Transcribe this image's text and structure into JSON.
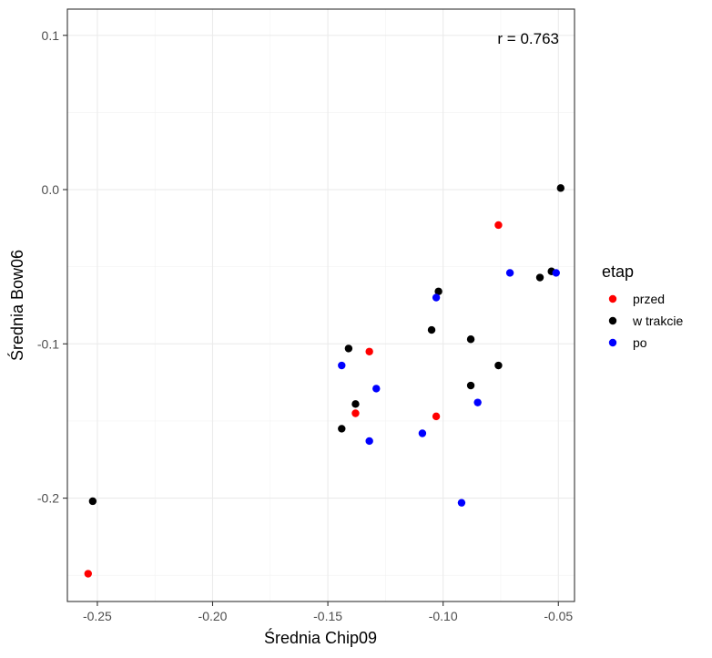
{
  "chart_data": {
    "type": "scatter",
    "xlabel": "Średnia Chip09",
    "ylabel": "Średnia Bow06",
    "xlim": [
      -0.263,
      -0.043
    ],
    "ylim": [
      -0.267,
      0.117
    ],
    "x_ticks": [
      -0.25,
      -0.2,
      -0.15,
      -0.1,
      -0.05
    ],
    "x_tick_labels": [
      "-0.25",
      "-0.20",
      "-0.15",
      "-0.10",
      "-0.05"
    ],
    "y_ticks": [
      -0.2,
      -0.1,
      0.0,
      0.1
    ],
    "y_tick_labels": [
      "-0.2",
      "-0.1",
      "0.0",
      "0.1"
    ],
    "grid": true,
    "annotation": "r = 0.763",
    "legend": {
      "title": "etap",
      "position": "right"
    },
    "series": [
      {
        "name": "przed",
        "color": "#ff0000",
        "points": [
          {
            "x": -0.254,
            "y": -0.249
          },
          {
            "x": -0.138,
            "y": -0.145
          },
          {
            "x": -0.132,
            "y": -0.105
          },
          {
            "x": -0.103,
            "y": -0.147
          },
          {
            "x": -0.076,
            "y": -0.023
          }
        ]
      },
      {
        "name": "w trakcie",
        "color": "#000000",
        "points": [
          {
            "x": -0.252,
            "y": -0.202
          },
          {
            "x": -0.144,
            "y": -0.155
          },
          {
            "x": -0.141,
            "y": -0.103
          },
          {
            "x": -0.138,
            "y": -0.139
          },
          {
            "x": -0.105,
            "y": -0.091
          },
          {
            "x": -0.102,
            "y": -0.066
          },
          {
            "x": -0.088,
            "y": -0.127
          },
          {
            "x": -0.088,
            "y": -0.097
          },
          {
            "x": -0.076,
            "y": -0.114
          },
          {
            "x": -0.058,
            "y": -0.057
          },
          {
            "x": -0.053,
            "y": -0.053
          },
          {
            "x": -0.049,
            "y": 0.001
          }
        ]
      },
      {
        "name": "po",
        "color": "#0000ff",
        "points": [
          {
            "x": -0.144,
            "y": -0.114
          },
          {
            "x": -0.132,
            "y": -0.163
          },
          {
            "x": -0.129,
            "y": -0.129
          },
          {
            "x": -0.109,
            "y": -0.158
          },
          {
            "x": -0.103,
            "y": -0.07
          },
          {
            "x": -0.092,
            "y": -0.203
          },
          {
            "x": -0.085,
            "y": -0.138
          },
          {
            "x": -0.071,
            "y": -0.054
          },
          {
            "x": -0.051,
            "y": -0.054
          }
        ]
      }
    ]
  }
}
